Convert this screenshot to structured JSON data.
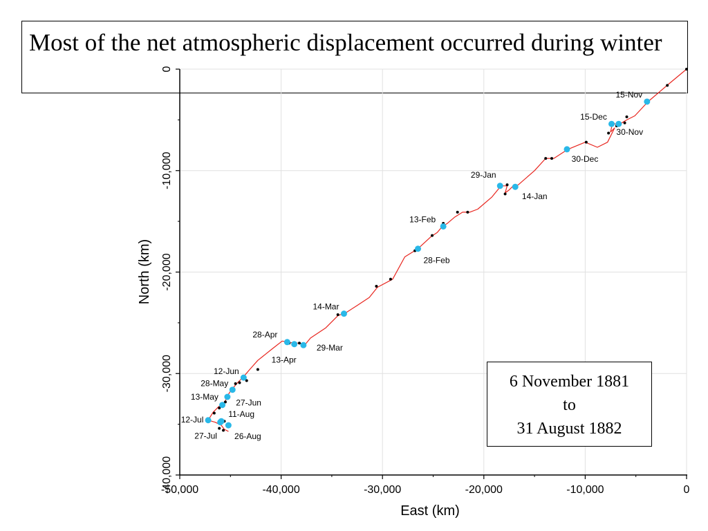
{
  "slide": {
    "title": "Most of the net atmospheric displacement occurred during winter"
  },
  "date_box": {
    "line1": "6 November 1881",
    "line2": "to",
    "line3": "31 August 1882"
  },
  "colors": {
    "track": "#e8251e",
    "dates": "#29b8e8",
    "points": "#000000",
    "grid": "#e0e0e0"
  },
  "chart_data": {
    "type": "line",
    "title": "",
    "xlabel": "East (km)",
    "ylabel": "North (km)",
    "xlim": [
      -50000,
      0
    ],
    "ylim": [
      -40000,
      0
    ],
    "x_ticks": [
      -50000,
      -40000,
      -30000,
      -20000,
      -10000,
      0
    ],
    "x_tick_labels": [
      "-50,000",
      "-40,000",
      "-30,000",
      "-20,000",
      "-10,000",
      "0"
    ],
    "y_ticks": [
      0,
      -10000,
      -20000,
      -30000,
      -40000
    ],
    "y_tick_labels": [
      "0",
      "-10,000",
      "-20,000",
      "-30,000",
      "-40,000"
    ],
    "grid": true,
    "series": [
      {
        "values": [
          [
            0,
            0
          ],
          [
            -1800,
            -1500
          ],
          [
            -3800,
            -3200
          ],
          [
            -5100,
            -4600
          ],
          [
            -5900,
            -5000
          ],
          [
            -6400,
            -5300
          ],
          [
            -6800,
            -5500
          ],
          [
            -7300,
            -5300
          ],
          [
            -7500,
            -6200
          ],
          [
            -7100,
            -5800
          ],
          [
            -7800,
            -7200
          ],
          [
            -8800,
            -7700
          ],
          [
            -10000,
            -7200
          ],
          [
            -11700,
            -7900
          ],
          [
            -13100,
            -8800
          ],
          [
            -13900,
            -8800
          ],
          [
            -15000,
            -10000
          ],
          [
            -16600,
            -11400
          ],
          [
            -17100,
            -11500
          ],
          [
            -17500,
            -11900
          ],
          [
            -17900,
            -12200
          ],
          [
            -17700,
            -11500
          ],
          [
            -18300,
            -11500
          ],
          [
            -19200,
            -12600
          ],
          [
            -20600,
            -13800
          ],
          [
            -21400,
            -14100
          ],
          [
            -22100,
            -14100
          ],
          [
            -22900,
            -14600
          ],
          [
            -23600,
            -15200
          ],
          [
            -24100,
            -15500
          ],
          [
            -24600,
            -16100
          ],
          [
            -25200,
            -16500
          ],
          [
            -26500,
            -17700
          ],
          [
            -27800,
            -18500
          ],
          [
            -29000,
            -20700
          ],
          [
            -30500,
            -21500
          ],
          [
            -31300,
            -22500
          ],
          [
            -32500,
            -23300
          ],
          [
            -33600,
            -24000
          ],
          [
            -34400,
            -24300
          ],
          [
            -35600,
            -25500
          ],
          [
            -37100,
            -26500
          ],
          [
            -37600,
            -27100
          ],
          [
            -38200,
            -27000
          ],
          [
            -38700,
            -27000
          ],
          [
            -39300,
            -26900
          ],
          [
            -39900,
            -26800
          ],
          [
            -40800,
            -27500
          ],
          [
            -42300,
            -28700
          ],
          [
            -43100,
            -29600
          ],
          [
            -43700,
            -30300
          ],
          [
            -44300,
            -30900
          ],
          [
            -44900,
            -31600
          ],
          [
            -45300,
            -32200
          ],
          [
            -45500,
            -32700
          ],
          [
            -45800,
            -33000
          ],
          [
            -46200,
            -33300
          ],
          [
            -46700,
            -33800
          ],
          [
            -47200,
            -34600
          ],
          [
            -46500,
            -34800
          ],
          [
            -45900,
            -35100
          ],
          [
            -45600,
            -35500
          ],
          [
            -45200,
            -35700
          ]
        ]
      }
    ],
    "date_markers": [
      {
        "label": "15-Nov",
        "x": -3900,
        "y": -3200
      },
      {
        "label": "30-Nov",
        "x": -6700,
        "y": -5400
      },
      {
        "label": "15-Dec",
        "x": -7400,
        "y": -5400
      },
      {
        "label": "30-Dec",
        "x": -11800,
        "y": -7900
      },
      {
        "label": "14-Jan",
        "x": -16900,
        "y": -11600
      },
      {
        "label": "29-Jan",
        "x": -18400,
        "y": -11500
      },
      {
        "label": "13-Feb",
        "x": -24000,
        "y": -15500
      },
      {
        "label": "28-Feb",
        "x": -26500,
        "y": -17700
      },
      {
        "label": "14-Mar",
        "x": -33800,
        "y": -24100
      },
      {
        "label": "29-Mar",
        "x": -37800,
        "y": -27200
      },
      {
        "label": "13-Apr",
        "x": -38700,
        "y": -27100
      },
      {
        "label": "28-Apr",
        "x": -39400,
        "y": -26900
      },
      {
        "label": "13-May",
        "x": -45300,
        "y": -32300
      },
      {
        "label": "28-May",
        "x": -44800,
        "y": -31600
      },
      {
        "label": "12-Jun",
        "x": -43700,
        "y": -30400
      },
      {
        "label": "27-Jun",
        "x": -45800,
        "y": -33100
      },
      {
        "label": "12-Jul",
        "x": -47200,
        "y": -34600
      },
      {
        "label": "27-Jul",
        "x": -46000,
        "y": -34800
      },
      {
        "label": "11-Aug",
        "x": -45900,
        "y": -34700
      },
      {
        "label": "26-Aug",
        "x": -45200,
        "y": -35100
      }
    ],
    "daily_points": [
      [
        0,
        0
      ],
      [
        -1900,
        -1600
      ],
      [
        -5900,
        -4700
      ],
      [
        -6100,
        -5300
      ],
      [
        -6900,
        -5600
      ],
      [
        -7700,
        -6300
      ],
      [
        -9900,
        -7200
      ],
      [
        -13900,
        -8800
      ],
      [
        -13300,
        -8800
      ],
      [
        -17900,
        -12300
      ],
      [
        -17700,
        -11400
      ],
      [
        -21600,
        -14100
      ],
      [
        -22600,
        -14100
      ],
      [
        -24000,
        -15200
      ],
      [
        -25100,
        -16400
      ],
      [
        -26800,
        -17900
      ],
      [
        -29200,
        -20700
      ],
      [
        -30600,
        -21400
      ],
      [
        -34400,
        -24200
      ],
      [
        -38200,
        -27000
      ],
      [
        -39200,
        -27000
      ],
      [
        -42300,
        -29600
      ],
      [
        -43400,
        -30700
      ],
      [
        -44100,
        -30900
      ],
      [
        -44500,
        -31000
      ],
      [
        -45500,
        -32800
      ],
      [
        -46100,
        -33400
      ],
      [
        -46600,
        -33900
      ],
      [
        -45600,
        -34700
      ],
      [
        -45700,
        -35600
      ],
      [
        -46100,
        -35400
      ]
    ]
  }
}
